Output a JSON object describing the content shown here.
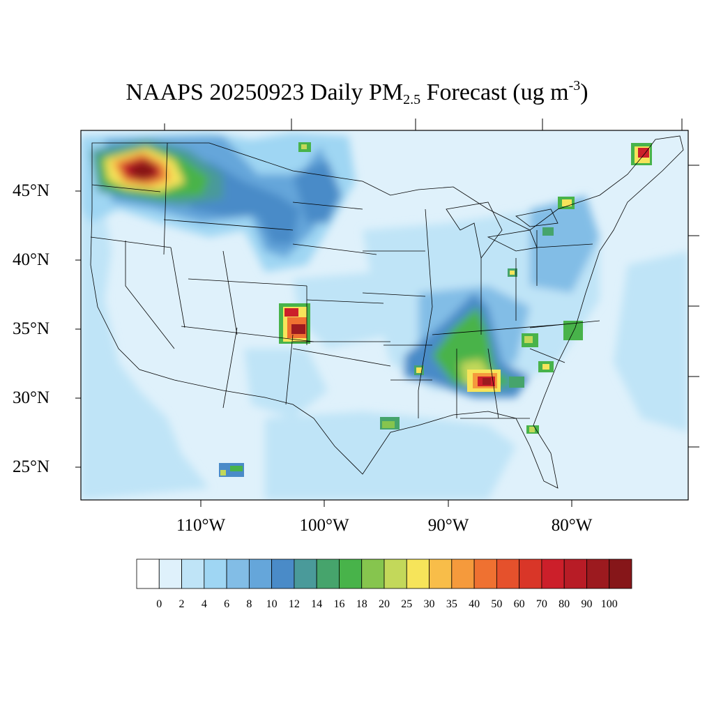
{
  "title": {
    "main": "NAAPS 20250923 Daily PM",
    "subscript": "2.5",
    "rest": " Forecast (ug m",
    "superscript": "-3",
    "close": ")"
  },
  "axes": {
    "lat_labels": [
      "45°N",
      "40°N",
      "35°N",
      "30°N",
      "25°N"
    ],
    "lon_labels": [
      "110°W",
      "100°W",
      "90°W",
      "80°W"
    ]
  },
  "colorbar": {
    "labels": [
      "0",
      "2",
      "4",
      "6",
      "8",
      "10",
      "12",
      "14",
      "16",
      "18",
      "20",
      "25",
      "30",
      "35",
      "40",
      "50",
      "60",
      "70",
      "80",
      "90",
      "100"
    ],
    "colors": [
      "#ffffff",
      "#dff1fb",
      "#bfe4f7",
      "#9fd6f3",
      "#82bde6",
      "#65a6da",
      "#4a8bc8",
      "#4a9a9a",
      "#46a46c",
      "#48b34a",
      "#86c54e",
      "#c3d85a",
      "#f6e45a",
      "#f8bd49",
      "#f59a3c",
      "#ef7131",
      "#e5512c",
      "#d93628",
      "#cc1f2a",
      "#b81c26",
      "#9c1a1f",
      "#861619"
    ]
  },
  "regions": [
    {
      "name": "northwest-smoke-plume",
      "color_level": "100"
    },
    {
      "name": "northern-plains-smoke",
      "color_level": "12"
    },
    {
      "name": "colorado-kansas-hotspot",
      "color_level": "100"
    },
    {
      "name": "southeast-hotspot",
      "color_level": "100"
    },
    {
      "name": "quebec-hotspot",
      "color_level": "100"
    }
  ]
}
